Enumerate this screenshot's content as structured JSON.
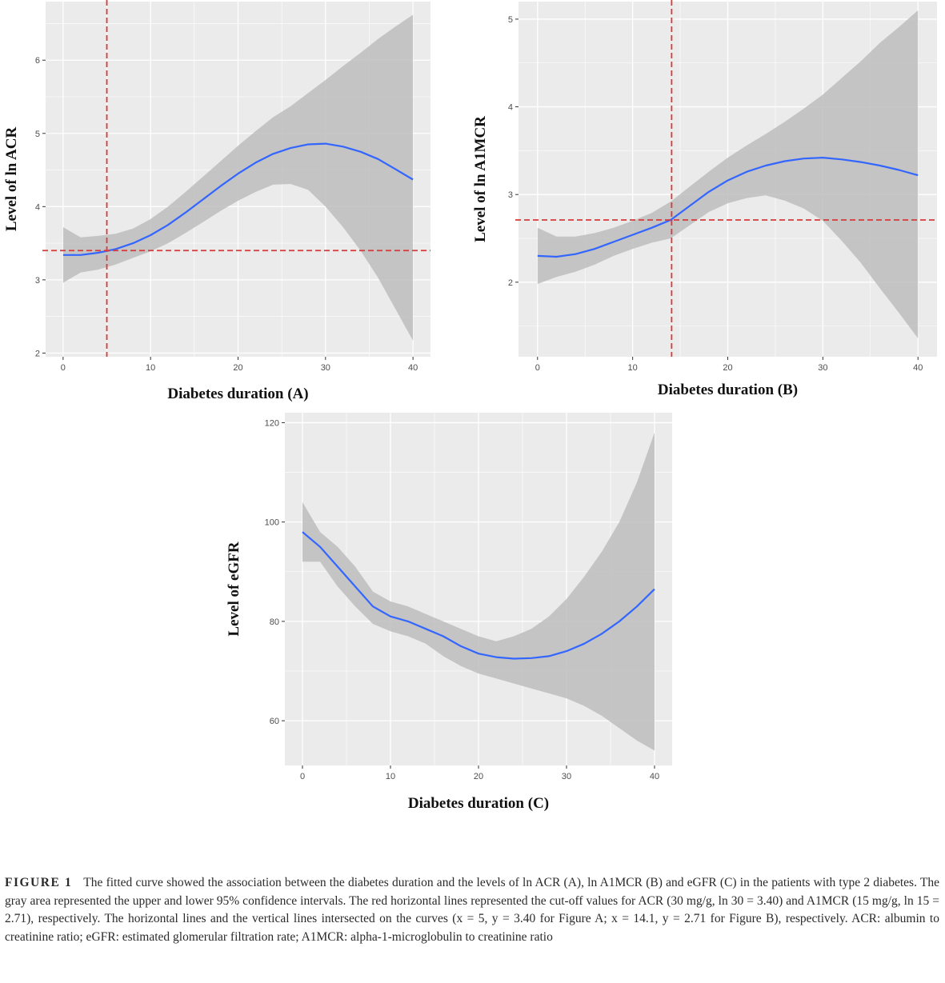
{
  "chart_data": [
    {
      "type": "line",
      "panel": "A",
      "xlabel": "Diabetes duration (A)",
      "ylabel": "Level of ln ACR",
      "xlim": [
        -2,
        42
      ],
      "ylim": [
        1.95,
        6.8
      ],
      "xticks": [
        0,
        10,
        20,
        30,
        40
      ],
      "yticks": [
        2,
        3,
        4,
        5,
        6
      ],
      "grid": true,
      "series": [
        {
          "x": [
            0,
            2,
            4,
            6,
            8,
            10,
            12,
            14,
            16,
            18,
            20,
            22,
            24,
            26,
            28,
            30,
            32,
            34,
            36,
            38,
            40
          ],
          "y": [
            3.34,
            3.34,
            3.37,
            3.42,
            3.5,
            3.61,
            3.75,
            3.92,
            4.1,
            4.28,
            4.45,
            4.6,
            4.72,
            4.8,
            4.85,
            4.86,
            4.82,
            4.75,
            4.65,
            4.51,
            4.37
          ],
          "ci_upper": [
            3.72,
            3.58,
            3.6,
            3.63,
            3.7,
            3.83,
            4.0,
            4.2,
            4.41,
            4.62,
            4.83,
            5.03,
            5.22,
            5.37,
            5.55,
            5.73,
            5.92,
            6.1,
            6.29,
            6.46,
            6.62
          ],
          "ci_lower": [
            2.96,
            3.1,
            3.14,
            3.21,
            3.3,
            3.39,
            3.5,
            3.64,
            3.79,
            3.94,
            4.08,
            4.2,
            4.3,
            4.31,
            4.23,
            4.0,
            3.72,
            3.4,
            3.03,
            2.6,
            2.17
          ]
        }
      ],
      "reference_lines": {
        "vertical_x": 5,
        "horizontal_y": 3.4
      },
      "colors": {
        "line": "#3366ff",
        "ribbon": "#bdbdbd",
        "reference": "#d63a3a",
        "panel_bg": "#ebebeb",
        "grid": "#ffffff"
      }
    },
    {
      "type": "line",
      "panel": "B",
      "xlabel": "Diabetes duration (B)",
      "ylabel": "Level of ln A1MCR",
      "xlim": [
        -2,
        42
      ],
      "ylim": [
        1.15,
        5.2
      ],
      "xticks": [
        0,
        10,
        20,
        30,
        40
      ],
      "yticks": [
        2,
        3,
        4,
        5
      ],
      "grid": true,
      "series": [
        {
          "x": [
            0,
            2,
            4,
            6,
            8,
            10,
            12,
            14,
            16,
            18,
            20,
            22,
            24,
            26,
            28,
            30,
            32,
            34,
            36,
            38,
            40
          ],
          "y": [
            2.3,
            2.29,
            2.32,
            2.38,
            2.46,
            2.54,
            2.62,
            2.71,
            2.87,
            3.03,
            3.16,
            3.26,
            3.33,
            3.38,
            3.41,
            3.42,
            3.4,
            3.37,
            3.33,
            3.28,
            3.22
          ],
          "ci_upper": [
            2.62,
            2.52,
            2.52,
            2.56,
            2.62,
            2.7,
            2.79,
            2.92,
            3.09,
            3.26,
            3.42,
            3.56,
            3.69,
            3.83,
            3.98,
            4.14,
            4.33,
            4.52,
            4.73,
            4.91,
            5.1
          ],
          "ci_lower": [
            1.98,
            2.06,
            2.12,
            2.2,
            2.3,
            2.38,
            2.45,
            2.5,
            2.65,
            2.8,
            2.9,
            2.96,
            2.99,
            2.93,
            2.84,
            2.7,
            2.47,
            2.22,
            1.93,
            1.65,
            1.36
          ]
        }
      ],
      "reference_lines": {
        "vertical_x": 14.1,
        "horizontal_y": 2.71
      },
      "colors": {
        "line": "#3366ff",
        "ribbon": "#bdbdbd",
        "reference": "#d63a3a",
        "panel_bg": "#ebebeb",
        "grid": "#ffffff"
      }
    },
    {
      "type": "line",
      "panel": "C",
      "xlabel": "Diabetes duration (C)",
      "ylabel": "Level of  eGFR",
      "xlim": [
        -2,
        42
      ],
      "ylim": [
        51,
        122
      ],
      "xticks": [
        0,
        10,
        20,
        30,
        40
      ],
      "yticks": [
        60,
        80,
        100,
        120
      ],
      "grid": true,
      "series": [
        {
          "x": [
            0,
            2,
            4,
            6,
            8,
            10,
            12,
            14,
            16,
            18,
            20,
            22,
            24,
            26,
            28,
            30,
            32,
            34,
            36,
            38,
            40
          ],
          "y": [
            98,
            95,
            91,
            87,
            83,
            81,
            80,
            78.5,
            77,
            75,
            73.5,
            72.8,
            72.5,
            72.6,
            73,
            74,
            75.5,
            77.5,
            80,
            83,
            86.5
          ],
          "ci_upper": [
            104,
            98,
            95,
            91,
            86,
            84,
            83,
            81.5,
            80,
            78.5,
            77,
            76,
            77,
            78.5,
            81,
            84.5,
            89,
            94,
            100,
            108,
            118
          ],
          "ci_lower": [
            92,
            92,
            87,
            83,
            79.5,
            78,
            77,
            75.5,
            73,
            71,
            69.5,
            68.5,
            67.5,
            66.5,
            65.5,
            64.5,
            63,
            61,
            58.5,
            56,
            54
          ]
        }
      ],
      "colors": {
        "line": "#3366ff",
        "ribbon": "#bdbdbd",
        "panel_bg": "#ebebeb",
        "grid": "#ffffff"
      }
    }
  ],
  "caption": {
    "label": "FIGURE 1",
    "text": "The fitted curve showed the association between the diabetes duration and the levels of ln ACR (A), ln A1MCR (B) and eGFR (C) in the patients with type 2 diabetes. The gray area represented the upper and lower 95% confidence intervals. The red horizontal lines represented the cut-off values for ACR (30 mg/g, ln 30 = 3.40) and A1MCR (15 mg/g, ln 15 = 2.71), respectively. The horizontal lines and the vertical lines intersected on the curves (x = 5, y = 3.40 for Figure A; x = 14.1, y = 2.71 for Figure B), respectively. ACR: albumin to creatinine ratio; eGFR: estimated glomerular filtration rate; A1MCR: alpha-1-microglobulin to creatinine ratio"
  }
}
